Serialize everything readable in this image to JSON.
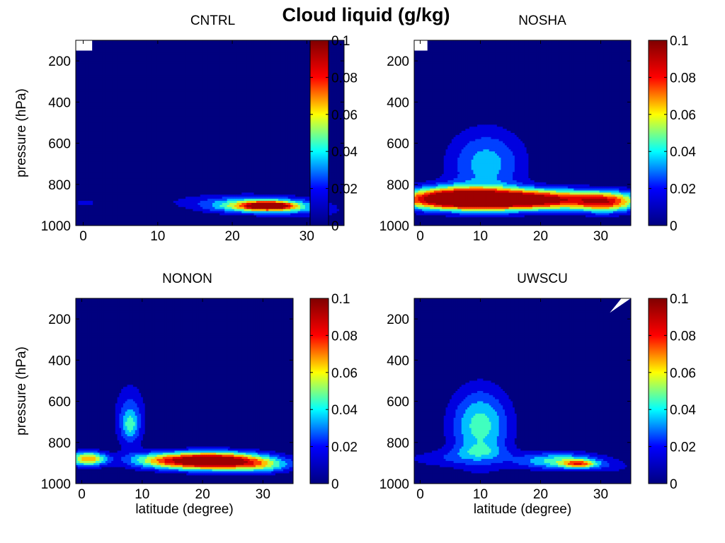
{
  "figure": {
    "title": "Cloud liquid (g/kg)"
  },
  "colormap": {
    "name": "jet",
    "stops": [
      "#00007f",
      "#0000ff",
      "#00ffff",
      "#ffff00",
      "#ff0000",
      "#7f0000"
    ]
  },
  "chart_data": [
    {
      "type": "heatmap",
      "panel": "CNTRL",
      "title": "CNTRL",
      "xlabel": "",
      "ylabel": "pressure (hPa)",
      "xlim": [
        -1,
        35
      ],
      "ylim": [
        1000,
        100
      ],
      "x_ticks": [
        "0",
        "10",
        "20",
        "30"
      ],
      "y_ticks": [
        "200",
        "400",
        "600",
        "800",
        "1000"
      ],
      "colorbar": {
        "range": [
          0,
          0.1
        ],
        "ticks": [
          "0",
          "0.02",
          "0.04",
          "0.06",
          "0.08",
          "0.1"
        ]
      },
      "blobs": [
        {
          "lat": 7.5,
          "p": 700,
          "sx": 2.0,
          "sp": 110,
          "amp": 0.008
        },
        {
          "lat": 0,
          "p": 890,
          "sx": 3.0,
          "sp": 25,
          "amp": 0.01
        },
        {
          "lat": 19,
          "p": 880,
          "sx": 8.0,
          "sp": 35,
          "amp": 0.012
        },
        {
          "lat": 24,
          "p": 905,
          "sx": 4.5,
          "sp": 25,
          "amp": 0.065
        },
        {
          "lat": 25,
          "p": 905,
          "sx": 2.2,
          "sp": 13,
          "amp": 0.06
        },
        {
          "lat": 31,
          "p": 935,
          "sx": 3.0,
          "sp": 20,
          "amp": 0.012
        }
      ],
      "missing": [
        {
          "lat0": -1,
          "lat1": 1.2,
          "p0": 100,
          "p1": 150
        }
      ]
    },
    {
      "type": "heatmap",
      "panel": "NOSHA",
      "title": "NOSHA",
      "xlabel": "",
      "ylabel": "",
      "xlim": [
        -1,
        35
      ],
      "ylim": [
        1000,
        100
      ],
      "x_ticks": [
        "0",
        "10",
        "20",
        "30"
      ],
      "y_ticks": [
        "200",
        "400",
        "600",
        "800",
        "1000"
      ],
      "colorbar": {
        "range": [
          0,
          0.1
        ],
        "ticks": [
          "0",
          "0.02",
          "0.04",
          "0.06",
          "0.08",
          "0.1"
        ]
      },
      "blobs": [
        {
          "lat": 11,
          "p": 700,
          "sx": 4.5,
          "sp": 120,
          "amp": 0.035
        },
        {
          "lat": 14,
          "p": 875,
          "sx": 12.0,
          "sp": 35,
          "amp": 0.12
        },
        {
          "lat": 5,
          "p": 860,
          "sx": 5.0,
          "sp": 40,
          "amp": 0.04
        },
        {
          "lat": 31,
          "p": 890,
          "sx": 3.5,
          "sp": 35,
          "amp": 0.05
        }
      ],
      "missing": [
        {
          "lat0": -1,
          "lat1": 1.2,
          "p0": 100,
          "p1": 150
        }
      ]
    },
    {
      "type": "heatmap",
      "panel": "NONON",
      "title": "NONON",
      "xlabel": "latitude (degree)",
      "ylabel": "pressure (hPa)",
      "xlim": [
        -1,
        35
      ],
      "ylim": [
        1000,
        100
      ],
      "x_ticks": [
        "0",
        "10",
        "20",
        "30"
      ],
      "y_ticks": [
        "200",
        "400",
        "600",
        "800",
        "1000"
      ],
      "colorbar": {
        "range": [
          0,
          0.1
        ],
        "ticks": [
          "0",
          "0.02",
          "0.04",
          "0.06",
          "0.08",
          "0.1"
        ]
      },
      "blobs": [
        {
          "lat": 8,
          "p": 680,
          "sx": 1.8,
          "sp": 110,
          "amp": 0.028
        },
        {
          "lat": 8,
          "p": 720,
          "sx": 0.9,
          "sp": 45,
          "amp": 0.02
        },
        {
          "lat": 1,
          "p": 880,
          "sx": 2.2,
          "sp": 25,
          "amp": 0.07
        },
        {
          "lat": 21,
          "p": 890,
          "sx": 6.5,
          "sp": 30,
          "amp": 0.12
        },
        {
          "lat": 30,
          "p": 915,
          "sx": 3.5,
          "sp": 25,
          "amp": 0.03
        },
        {
          "lat": 12,
          "p": 885,
          "sx": 3.0,
          "sp": 25,
          "amp": 0.02
        }
      ],
      "missing": []
    },
    {
      "type": "heatmap",
      "panel": "UWSCU",
      "title": "UWSCU",
      "xlabel": "latitude (degree)",
      "ylabel": "",
      "xlim": [
        -1,
        35
      ],
      "ylim": [
        1000,
        100
      ],
      "x_ticks": [
        "0",
        "10",
        "20",
        "30"
      ],
      "y_ticks": [
        "200",
        "400",
        "600",
        "800",
        "1000"
      ],
      "colorbar": {
        "range": [
          0,
          0.1
        ],
        "ticks": [
          "0",
          "0.02",
          "0.04",
          "0.06",
          "0.08",
          "0.1"
        ]
      },
      "blobs": [
        {
          "lat": 10,
          "p": 720,
          "sx": 3.5,
          "sp": 130,
          "amp": 0.045
        },
        {
          "lat": 10,
          "p": 845,
          "sx": 3.0,
          "sp": 25,
          "amp": 0.015
        },
        {
          "lat": 3,
          "p": 880,
          "sx": 4.5,
          "sp": 30,
          "amp": 0.015
        },
        {
          "lat": 23,
          "p": 890,
          "sx": 5.0,
          "sp": 30,
          "amp": 0.045
        },
        {
          "lat": 26.5,
          "p": 905,
          "sx": 2.0,
          "sp": 14,
          "amp": 0.05
        },
        {
          "lat": 32,
          "p": 920,
          "sx": 3.0,
          "sp": 25,
          "amp": 0.01
        }
      ],
      "missing": [
        {
          "lat0": 31.5,
          "lat1": 35,
          "p0": 100,
          "p1": 170,
          "triangle": true
        }
      ]
    }
  ]
}
